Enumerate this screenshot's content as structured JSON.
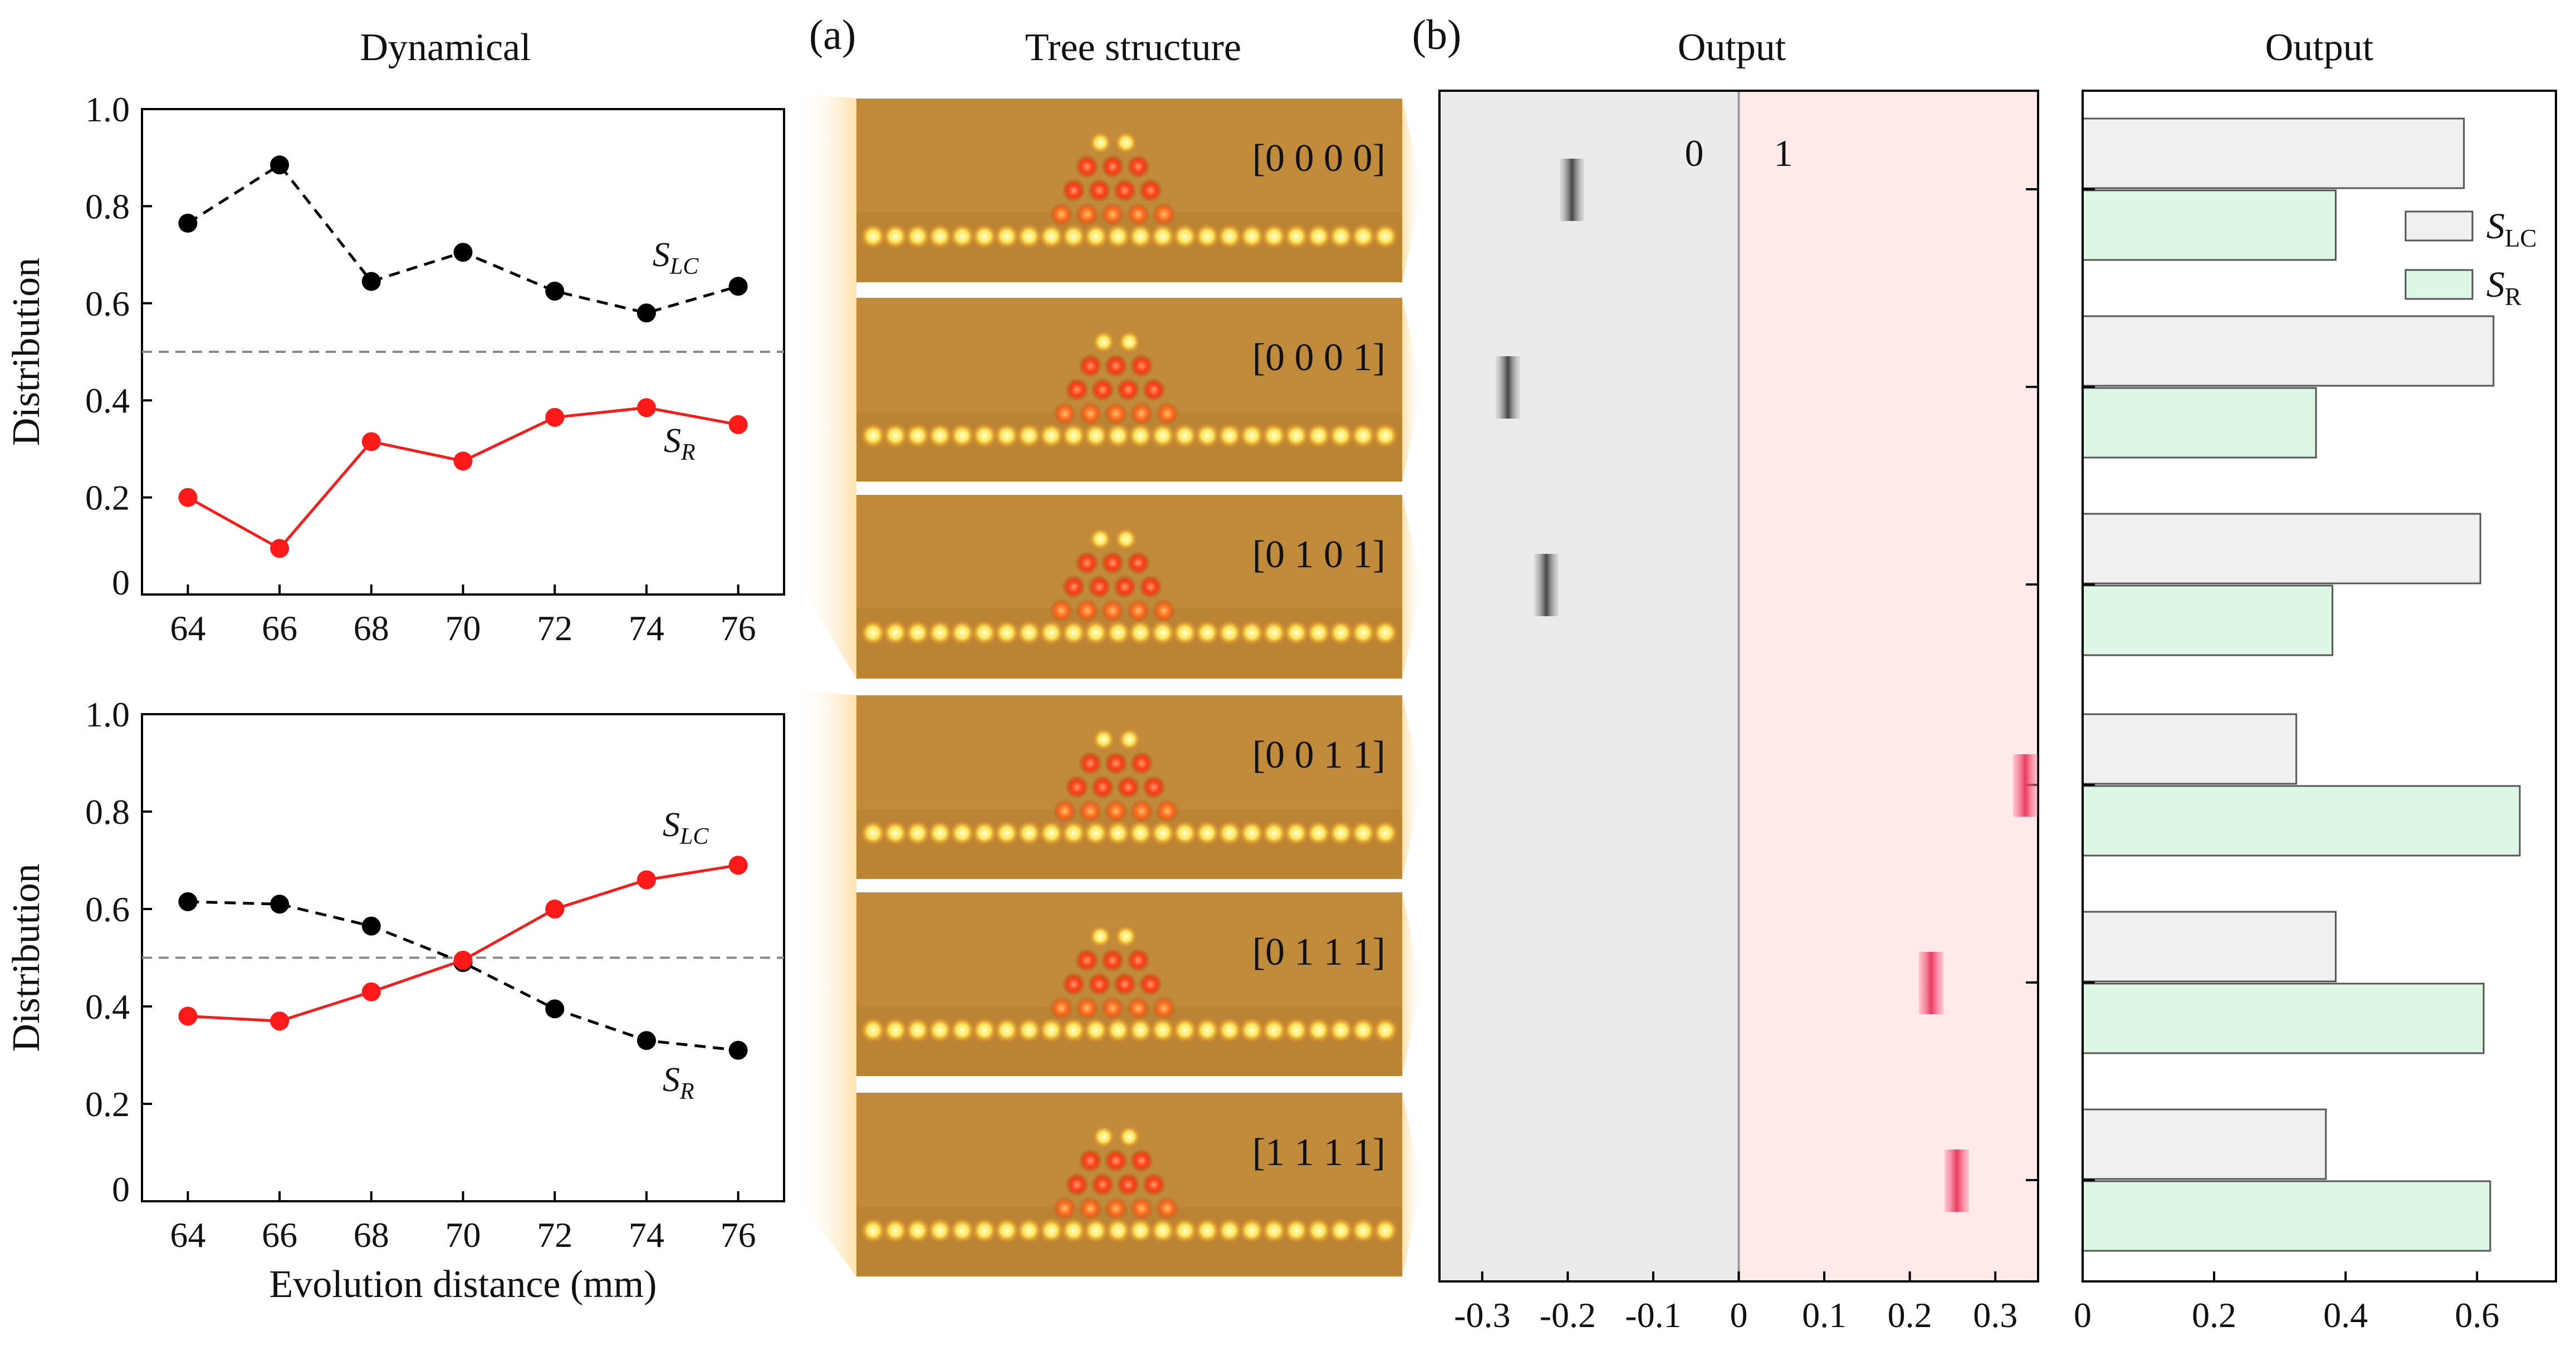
{
  "colors": {
    "slc": "#000000",
    "sr": "#ff1a1a",
    "dashed_ref": "#888888",
    "region_zero": "#ebebeb",
    "region_one": "#ffe8ea",
    "bar_slc": "#f0f0f0",
    "bar_sr": "#dcf7e6",
    "tick_zero": "#666666",
    "tick_one": "#ee4d6d",
    "photo_bg": "#bf8a3a"
  },
  "panels": {
    "a_label": "(a)",
    "b_label": "(b)",
    "tree_title": "Tree structure",
    "dyn_title": "Dynamical",
    "output_title": "Output",
    "bar_title": "Output"
  },
  "tree_labels": [
    "[0 0 0 0]",
    "[0 0 0 1]",
    "[0 1 0 1]",
    "[0 0 1 1]",
    "[0 1 1 1]",
    "[1 1 1 1]"
  ],
  "chart_data": [
    {
      "type": "line",
      "title": "Dynamical",
      "xlabel": "",
      "ylabel": "Distribution",
      "x": [
        64,
        66,
        68,
        70,
        72,
        74,
        76
      ],
      "xlim": [
        63,
        77
      ],
      "ylim": [
        0,
        1.0
      ],
      "xticks": [
        "64",
        "66",
        "68",
        "70",
        "72",
        "74",
        "76"
      ],
      "yticks": [
        "0",
        "0.2",
        "0.4",
        "0.6",
        "0.8",
        "1.0"
      ],
      "reference_line": 0.5,
      "series": [
        {
          "name": "S",
          "sub": "LC",
          "values": [
            0.765,
            0.885,
            0.645,
            0.705,
            0.625,
            0.58,
            0.635
          ]
        },
        {
          "name": "S",
          "sub": "R",
          "values": [
            0.2,
            0.095,
            0.315,
            0.275,
            0.365,
            0.385,
            0.35
          ]
        }
      ]
    },
    {
      "type": "line",
      "xlabel": "Evolution distance (mm)",
      "ylabel": "Distribution",
      "x": [
        64,
        66,
        68,
        70,
        72,
        74,
        76
      ],
      "xlim": [
        63,
        77
      ],
      "ylim": [
        0,
        1.0
      ],
      "xticks": [
        "64",
        "66",
        "68",
        "70",
        "72",
        "74",
        "76"
      ],
      "yticks": [
        "0",
        "0.2",
        "0.4",
        "0.6",
        "0.8",
        "1.0"
      ],
      "reference_line": 0.5,
      "series": [
        {
          "name": "S",
          "sub": "LC",
          "values": [
            0.615,
            0.61,
            0.565,
            0.49,
            0.395,
            0.33,
            0.31
          ]
        },
        {
          "name": "S",
          "sub": "R",
          "values": [
            0.38,
            0.37,
            0.43,
            0.495,
            0.6,
            0.66,
            0.69
          ]
        }
      ]
    },
    {
      "type": "scatter",
      "title": "Output",
      "region_labels": [
        "0",
        "1"
      ],
      "xlim": [
        -0.35,
        0.35
      ],
      "xticks": [
        "-0.3",
        "-0.2",
        "-0.1",
        "0",
        "0.1",
        "0.2",
        "0.3"
      ],
      "tick_values": [
        -0.3,
        -0.2,
        -0.1,
        0,
        0.1,
        0.2,
        0.3
      ],
      "values": [
        -0.195,
        -0.27,
        -0.225,
        0.335,
        0.225,
        0.255
      ]
    },
    {
      "type": "bar",
      "title": "Output",
      "orientation": "horizontal",
      "xlim": [
        0,
        0.72
      ],
      "xticks": [
        "0",
        "0.2",
        "0.4",
        "0.6"
      ],
      "tick_values": [
        0,
        0.2,
        0.4,
        0.6
      ],
      "legend": {
        "position": "top-right",
        "entries": [
          {
            "name": "S",
            "sub": "LC"
          },
          {
            "name": "S",
            "sub": "R"
          }
        ]
      },
      "series": [
        {
          "name": "S",
          "sub": "LC",
          "values": [
            0.58,
            0.625,
            0.605,
            0.325,
            0.385,
            0.37
          ]
        },
        {
          "name": "S",
          "sub": "R",
          "values": [
            0.385,
            0.355,
            0.38,
            0.665,
            0.61,
            0.62
          ]
        }
      ]
    }
  ]
}
